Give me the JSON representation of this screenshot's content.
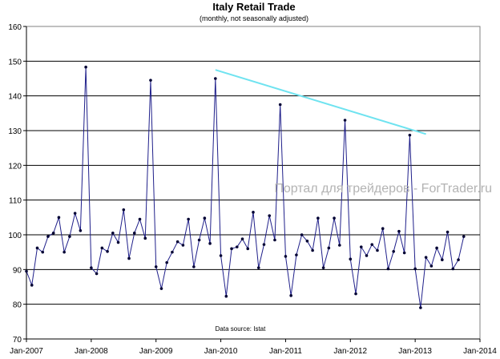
{
  "chart_data": {
    "type": "line",
    "title": "Italy Retail Trade",
    "subtitle": "(monthly, not seasonally adjusted)",
    "source_note": "Data source: Istat",
    "watermark": "Портал для трейдеров - ForTrader.ru",
    "x_start": "2007-01",
    "x_ticks": [
      "Jan-2007",
      "Jan-2008",
      "Jan-2009",
      "Jan-2010",
      "Jan-2011",
      "Jan-2012",
      "Jan-2013",
      "Jan-2014"
    ],
    "ylim": [
      70,
      160
    ],
    "yticks": [
      70,
      80,
      90,
      100,
      110,
      120,
      130,
      140,
      150,
      160
    ],
    "grid": true,
    "series": [
      {
        "color": "#1f1f8a",
        "values": [
          89.5,
          85.5,
          96.2,
          95.0,
          99.5,
          100.5,
          105.0,
          95.0,
          99.5,
          106.2,
          101.2,
          148.3,
          90.5,
          88.8,
          96.2,
          95.2,
          100.5,
          97.8,
          107.2,
          93.2,
          100.5,
          104.5,
          99.0,
          144.5,
          90.8,
          84.5,
          92.0,
          95.0,
          98.0,
          97.0,
          104.5,
          90.8,
          98.5,
          104.8,
          97.5,
          145.0,
          94.0,
          82.3,
          96.0,
          96.5,
          98.8,
          96.0,
          106.5,
          90.5,
          97.2,
          105.5,
          98.5,
          137.5,
          93.8,
          82.5,
          94.2,
          100.0,
          98.2,
          95.5,
          104.8,
          90.5,
          96.2,
          104.8,
          97.0,
          133.0,
          93.0,
          83.0,
          96.5,
          94.0,
          97.2,
          95.5,
          101.8,
          90.2,
          95.2,
          101.0,
          94.8,
          128.7,
          90.2,
          79.0,
          93.5,
          91.0,
          96.2,
          92.8,
          100.8,
          90.2,
          92.8,
          99.5
        ]
      }
    ],
    "trend_line": {
      "color": "#6fe3f0",
      "points": [
        {
          "x": "2009-12",
          "y": 147.5
        },
        {
          "x": "2013-03",
          "y": 129.0
        }
      ]
    }
  }
}
